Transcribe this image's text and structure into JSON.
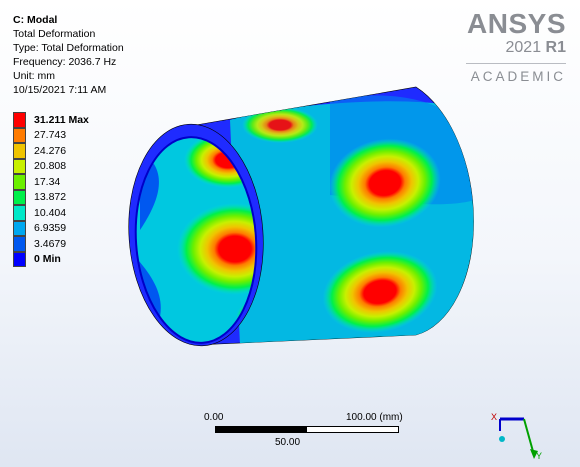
{
  "info": {
    "title": "C: Modal",
    "type_line": "Total Deformation",
    "result_type": "Type: Total Deformation",
    "frequency": "Frequency: 2036.7 Hz",
    "unit": "Unit: mm",
    "timestamp": "10/15/2021 7:11 AM"
  },
  "legend": [
    {
      "label": "31.211 Max",
      "color": "#ff0000",
      "bold": true
    },
    {
      "label": "27.743",
      "color": "#ff7b00"
    },
    {
      "label": "24.276",
      "color": "#f0c400"
    },
    {
      "label": "20.808",
      "color": "#c8f000"
    },
    {
      "label": "17.34",
      "color": "#6bf000"
    },
    {
      "label": "13.872",
      "color": "#00f04a"
    },
    {
      "label": "10.404",
      "color": "#00e8c8"
    },
    {
      "label": "6.9359",
      "color": "#00a8f0"
    },
    {
      "label": "3.4679",
      "color": "#0058f0"
    },
    {
      "label": "0 Min",
      "color": "#0000ff",
      "bold": true
    }
  ],
  "brand": {
    "name": "ANSYS",
    "version": "2021",
    "release": "R1",
    "edition": "ACADEMIC"
  },
  "scale": {
    "left": "0.00",
    "right": "100.00 (mm)",
    "mid": "50.00"
  },
  "triad": {
    "x_label": "X",
    "y_label": "Y"
  }
}
